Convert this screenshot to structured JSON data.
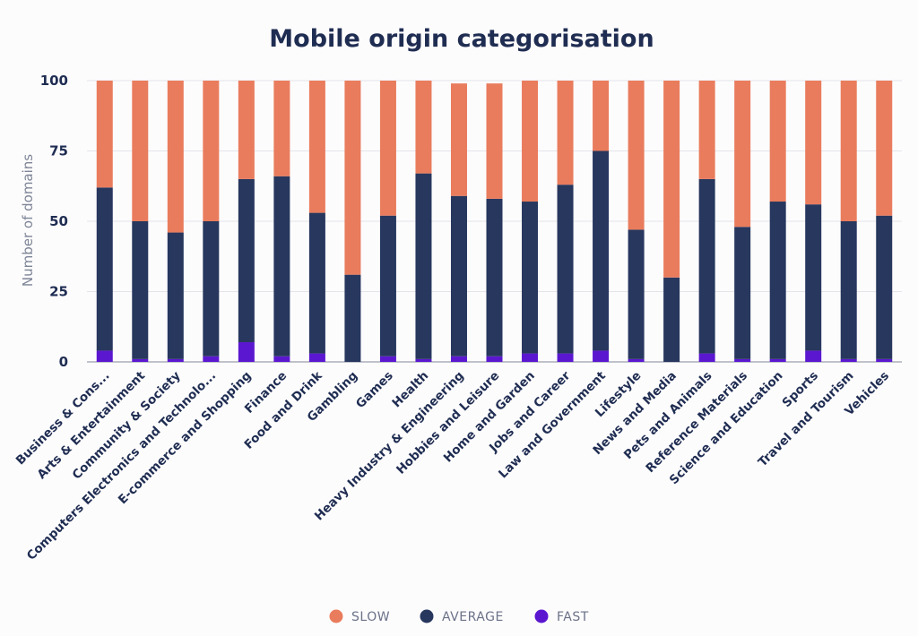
{
  "chart_data": {
    "type": "bar",
    "stacked": true,
    "title": "Mobile origin categorisation",
    "xlabel": "",
    "ylabel": "Number of domains",
    "ylim": [
      0,
      100
    ],
    "yticks": [
      0,
      25,
      50,
      75,
      100
    ],
    "grid": true,
    "legend_position": "bottom-center",
    "categories": [
      "Business & Cons...",
      "Arts & Entertainment",
      "Community & Society",
      "Computers Electronics and Technolo...",
      "E-commerce and Shopping",
      "Finance",
      "Food and Drink",
      "Gambling",
      "Games",
      "Health",
      "Heavy Industry & Engineering",
      "Hobbies and Leisure",
      "Home and Garden",
      "Jobs and Career",
      "Law and Government",
      "Lifestyle",
      "News and Media",
      "Pets and Animals",
      "Reference Materials",
      "Science and Education",
      "Sports",
      "Travel and Tourism",
      "Vehicles"
    ],
    "series": [
      {
        "name": "FAST",
        "color": "#5b17d0",
        "values": [
          4,
          1,
          1,
          2,
          7,
          2,
          3,
          0,
          2,
          1,
          2,
          2,
          3,
          3,
          4,
          1,
          0,
          3,
          1,
          1,
          4,
          1,
          1
        ]
      },
      {
        "name": "AVERAGE",
        "color": "#27375e",
        "values": [
          58,
          49,
          45,
          48,
          58,
          64,
          50,
          31,
          50,
          66,
          57,
          56,
          54,
          60,
          71,
          46,
          30,
          62,
          47,
          56,
          52,
          49,
          51
        ]
      },
      {
        "name": "SLOW",
        "color": "#e97c5d",
        "values": [
          38,
          50,
          54,
          50,
          35,
          34,
          47,
          69,
          48,
          33,
          40,
          41,
          43,
          37,
          25,
          53,
          70,
          35,
          52,
          43,
          44,
          50,
          48
        ]
      }
    ]
  },
  "legend": [
    {
      "label": "SLOW",
      "color": "#e97c5d"
    },
    {
      "label": "AVERAGE",
      "color": "#27375e"
    },
    {
      "label": "FAST",
      "color": "#5b17d0"
    }
  ]
}
